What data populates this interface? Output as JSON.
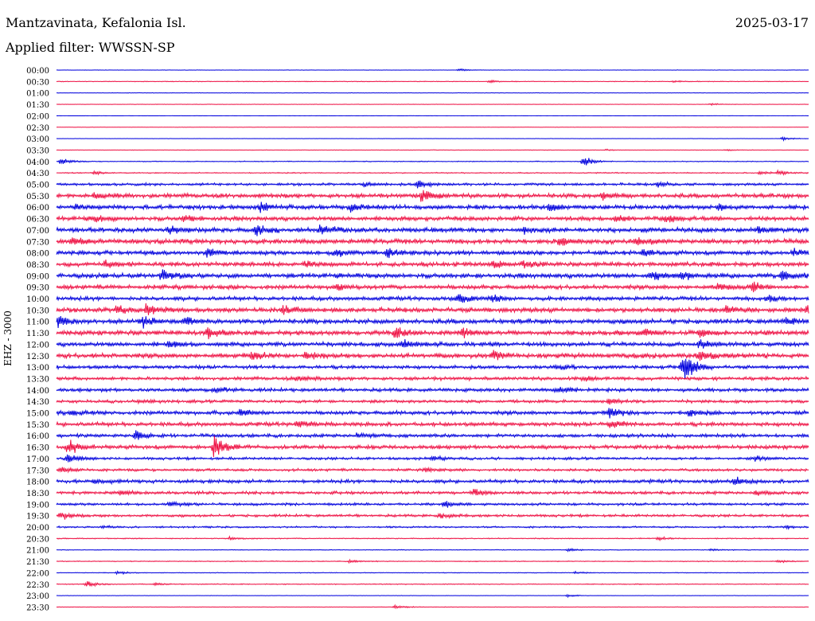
{
  "header": {
    "station": "Mantzavinata, Kefalonia Isl.",
    "date": "2025-03-17",
    "filter": "Applied filter: WWSSN-SP"
  },
  "chart_data": {
    "type": "line",
    "title": "Mantzavinata, Kefalonia Isl.",
    "ylabel": "EHZ - 3000",
    "colors": {
      "even": "#0000dd",
      "odd": "#ee1144"
    },
    "rows": [
      {
        "label": "00:00",
        "activity": 0.05,
        "events": [
          {
            "t": 0.535,
            "amp": 0.35
          }
        ]
      },
      {
        "label": "00:30",
        "activity": 0.08,
        "events": [
          {
            "t": 0.575,
            "amp": 0.3
          },
          {
            "t": 0.82,
            "amp": 0.2
          }
        ]
      },
      {
        "label": "01:00",
        "activity": 0.05,
        "events": []
      },
      {
        "label": "01:30",
        "activity": 0.05,
        "events": [
          {
            "t": 0.87,
            "amp": 0.25
          }
        ]
      },
      {
        "label": "02:00",
        "activity": 0.02,
        "events": []
      },
      {
        "label": "02:30",
        "activity": 0.04,
        "events": []
      },
      {
        "label": "03:00",
        "activity": 0.04,
        "events": [
          {
            "t": 0.965,
            "amp": 0.4
          }
        ]
      },
      {
        "label": "03:30",
        "activity": 0.06,
        "events": [
          {
            "t": 0.73,
            "amp": 0.2
          },
          {
            "t": 0.89,
            "amp": 0.2
          }
        ]
      },
      {
        "label": "04:00",
        "activity": 0.1,
        "events": [
          {
            "t": 0.005,
            "amp": 0.8
          },
          {
            "t": 0.7,
            "amp": 1.4
          }
        ]
      },
      {
        "label": "04:30",
        "activity": 0.12,
        "events": [
          {
            "t": 0.05,
            "amp": 0.4
          },
          {
            "t": 0.935,
            "amp": 0.5
          },
          {
            "t": 0.96,
            "amp": 0.5
          }
        ]
      },
      {
        "label": "05:00",
        "activity": 0.3,
        "events": [
          {
            "t": 0.41,
            "amp": 0.5
          },
          {
            "t": 0.48,
            "amp": 1.0
          },
          {
            "t": 0.8,
            "amp": 0.6
          }
        ]
      },
      {
        "label": "05:30",
        "activity": 0.5,
        "events": [
          {
            "t": 0.05,
            "amp": 0.8
          },
          {
            "t": 0.485,
            "amp": 1.8
          },
          {
            "t": 0.725,
            "amp": 1.0
          }
        ]
      },
      {
        "label": "06:00",
        "activity": 0.5,
        "events": [
          {
            "t": 0.025,
            "amp": 0.6
          },
          {
            "t": 0.27,
            "amp": 1.2
          },
          {
            "t": 0.39,
            "amp": 0.9
          },
          {
            "t": 0.655,
            "amp": 1.0
          },
          {
            "t": 0.88,
            "amp": 0.8
          }
        ]
      },
      {
        "label": "06:30",
        "activity": 0.5,
        "events": [
          {
            "t": 0.05,
            "amp": 0.7
          },
          {
            "t": 0.17,
            "amp": 0.8
          },
          {
            "t": 0.745,
            "amp": 0.9
          },
          {
            "t": 0.81,
            "amp": 0.9
          }
        ]
      },
      {
        "label": "07:00",
        "activity": 0.55,
        "events": [
          {
            "t": 0.15,
            "amp": 1.0
          },
          {
            "t": 0.265,
            "amp": 1.2
          },
          {
            "t": 0.35,
            "amp": 1.5
          },
          {
            "t": 0.62,
            "amp": 0.7
          },
          {
            "t": 0.93,
            "amp": 0.8
          }
        ]
      },
      {
        "label": "07:30",
        "activity": 0.55,
        "events": [
          {
            "t": 0.02,
            "amp": 0.9
          },
          {
            "t": 0.67,
            "amp": 1.2
          },
          {
            "t": 0.77,
            "amp": 0.9
          }
        ]
      },
      {
        "label": "08:00",
        "activity": 0.5,
        "events": [
          {
            "t": 0.2,
            "amp": 1.0
          },
          {
            "t": 0.37,
            "amp": 1.3
          },
          {
            "t": 0.44,
            "amp": 1.3
          },
          {
            "t": 0.78,
            "amp": 0.8
          },
          {
            "t": 0.98,
            "amp": 0.8
          }
        ]
      },
      {
        "label": "08:30",
        "activity": 0.5,
        "events": [
          {
            "t": 0.065,
            "amp": 0.8
          },
          {
            "t": 0.33,
            "amp": 0.9
          },
          {
            "t": 0.58,
            "amp": 1.0
          },
          {
            "t": 0.62,
            "amp": 0.8
          }
        ]
      },
      {
        "label": "09:00",
        "activity": 0.55,
        "events": [
          {
            "t": 0.14,
            "amp": 1.2
          },
          {
            "t": 0.79,
            "amp": 1.2
          },
          {
            "t": 0.83,
            "amp": 1.0
          },
          {
            "t": 0.965,
            "amp": 1.4
          }
        ]
      },
      {
        "label": "09:30",
        "activity": 0.5,
        "events": [
          {
            "t": 0.37,
            "amp": 0.9
          },
          {
            "t": 0.88,
            "amp": 0.8
          },
          {
            "t": 0.925,
            "amp": 1.5
          }
        ]
      },
      {
        "label": "10:00",
        "activity": 0.45,
        "events": [
          {
            "t": 0.535,
            "amp": 1.4
          },
          {
            "t": 0.58,
            "amp": 1.0
          },
          {
            "t": 0.945,
            "amp": 1.0
          }
        ]
      },
      {
        "label": "10:30",
        "activity": 0.55,
        "events": [
          {
            "t": 0.08,
            "amp": 1.1
          },
          {
            "t": 0.12,
            "amp": 1.4
          },
          {
            "t": 0.3,
            "amp": 1.3
          },
          {
            "t": 0.89,
            "amp": 0.8
          },
          {
            "t": 0.998,
            "amp": 1.2
          }
        ]
      },
      {
        "label": "11:00",
        "activity": 0.55,
        "events": [
          {
            "t": 0.003,
            "amp": 1.2
          },
          {
            "t": 0.115,
            "amp": 1.2
          },
          {
            "t": 0.17,
            "amp": 1.0
          },
          {
            "t": 0.97,
            "amp": 1.0
          }
        ]
      },
      {
        "label": "11:30",
        "activity": 0.55,
        "events": [
          {
            "t": 0.2,
            "amp": 1.5
          },
          {
            "t": 0.45,
            "amp": 1.4
          },
          {
            "t": 0.54,
            "amp": 1.2
          },
          {
            "t": 0.78,
            "amp": 1.0
          },
          {
            "t": 0.855,
            "amp": 1.2
          }
        ]
      },
      {
        "label": "12:00",
        "activity": 0.5,
        "events": [
          {
            "t": 0.15,
            "amp": 0.8
          },
          {
            "t": 0.46,
            "amp": 1.3
          },
          {
            "t": 0.855,
            "amp": 1.2
          }
        ]
      },
      {
        "label": "12:30",
        "activity": 0.55,
        "events": [
          {
            "t": 0.26,
            "amp": 1.0
          },
          {
            "t": 0.33,
            "amp": 1.2
          },
          {
            "t": 0.58,
            "amp": 1.0
          },
          {
            "t": 0.855,
            "amp": 1.3
          }
        ]
      },
      {
        "label": "13:00",
        "activity": 0.4,
        "events": [
          {
            "t": 0.665,
            "amp": 0.8
          },
          {
            "t": 0.83,
            "amp": 1.2
          },
          {
            "t": 0.835,
            "amp": 3.0
          }
        ]
      },
      {
        "label": "13:30",
        "activity": 0.4,
        "events": [
          {
            "t": 0.32,
            "amp": 0.7
          },
          {
            "t": 0.7,
            "amp": 0.6
          }
        ]
      },
      {
        "label": "14:00",
        "activity": 0.4,
        "events": [
          {
            "t": 0.21,
            "amp": 0.9
          },
          {
            "t": 0.665,
            "amp": 0.8
          }
        ]
      },
      {
        "label": "14:30",
        "activity": 0.35,
        "events": [
          {
            "t": 0.11,
            "amp": 0.5
          },
          {
            "t": 0.735,
            "amp": 0.7
          }
        ]
      },
      {
        "label": "15:00",
        "activity": 0.45,
        "events": [
          {
            "t": 0.02,
            "amp": 0.6
          },
          {
            "t": 0.245,
            "amp": 1.0
          },
          {
            "t": 0.735,
            "amp": 1.3
          },
          {
            "t": 0.84,
            "amp": 0.9
          }
        ]
      },
      {
        "label": "15:30",
        "activity": 0.45,
        "events": [
          {
            "t": 0.32,
            "amp": 1.0
          },
          {
            "t": 0.735,
            "amp": 1.2
          }
        ]
      },
      {
        "label": "16:00",
        "activity": 0.4,
        "events": [
          {
            "t": 0.105,
            "amp": 1.2
          },
          {
            "t": 0.4,
            "amp": 0.6
          }
        ]
      },
      {
        "label": "16:30",
        "activity": 0.45,
        "events": [
          {
            "t": 0.015,
            "amp": 1.8
          },
          {
            "t": 0.21,
            "amp": 1.3
          },
          {
            "t": 0.21,
            "amp": 2.2
          }
        ]
      },
      {
        "label": "17:00",
        "activity": 0.3,
        "events": [
          {
            "t": 0.015,
            "amp": 1.2
          },
          {
            "t": 0.5,
            "amp": 0.6
          },
          {
            "t": 0.93,
            "amp": 0.6
          }
        ]
      },
      {
        "label": "17:30",
        "activity": 0.3,
        "events": [
          {
            "t": 0.005,
            "amp": 0.8
          },
          {
            "t": 0.49,
            "amp": 0.5
          }
        ]
      },
      {
        "label": "18:00",
        "activity": 0.4,
        "events": [
          {
            "t": 0.05,
            "amp": 0.7
          },
          {
            "t": 0.9,
            "amp": 1.0
          }
        ]
      },
      {
        "label": "18:30",
        "activity": 0.35,
        "events": [
          {
            "t": 0.085,
            "amp": 0.6
          },
          {
            "t": 0.555,
            "amp": 0.8
          },
          {
            "t": 0.93,
            "amp": 0.7
          }
        ]
      },
      {
        "label": "19:00",
        "activity": 0.3,
        "events": [
          {
            "t": 0.15,
            "amp": 0.7
          },
          {
            "t": 0.515,
            "amp": 0.8
          }
        ]
      },
      {
        "label": "19:30",
        "activity": 0.3,
        "events": [
          {
            "t": 0.005,
            "amp": 1.0
          },
          {
            "t": 0.51,
            "amp": 0.6
          }
        ]
      },
      {
        "label": "20:00",
        "activity": 0.2,
        "events": [
          {
            "t": 0.06,
            "amp": 0.4
          },
          {
            "t": 0.97,
            "amp": 0.4
          }
        ]
      },
      {
        "label": "20:30",
        "activity": 0.12,
        "events": [
          {
            "t": 0.23,
            "amp": 0.4
          },
          {
            "t": 0.8,
            "amp": 0.4
          }
        ]
      },
      {
        "label": "21:00",
        "activity": 0.08,
        "events": [
          {
            "t": 0.68,
            "amp": 0.4
          },
          {
            "t": 0.87,
            "amp": 0.3
          }
        ]
      },
      {
        "label": "21:30",
        "activity": 0.1,
        "events": [
          {
            "t": 0.39,
            "amp": 0.4
          },
          {
            "t": 0.96,
            "amp": 0.3
          }
        ]
      },
      {
        "label": "22:00",
        "activity": 0.08,
        "events": [
          {
            "t": 0.08,
            "amp": 0.4
          },
          {
            "t": 0.69,
            "amp": 0.3
          }
        ]
      },
      {
        "label": "22:30",
        "activity": 0.1,
        "events": [
          {
            "t": 0.04,
            "amp": 0.8
          },
          {
            "t": 0.13,
            "amp": 0.3
          }
        ]
      },
      {
        "label": "23:00",
        "activity": 0.05,
        "events": [
          {
            "t": 0.68,
            "amp": 0.3
          }
        ]
      },
      {
        "label": "23:30",
        "activity": 0.06,
        "events": [
          {
            "t": 0.45,
            "amp": 0.6
          }
        ]
      }
    ]
  }
}
